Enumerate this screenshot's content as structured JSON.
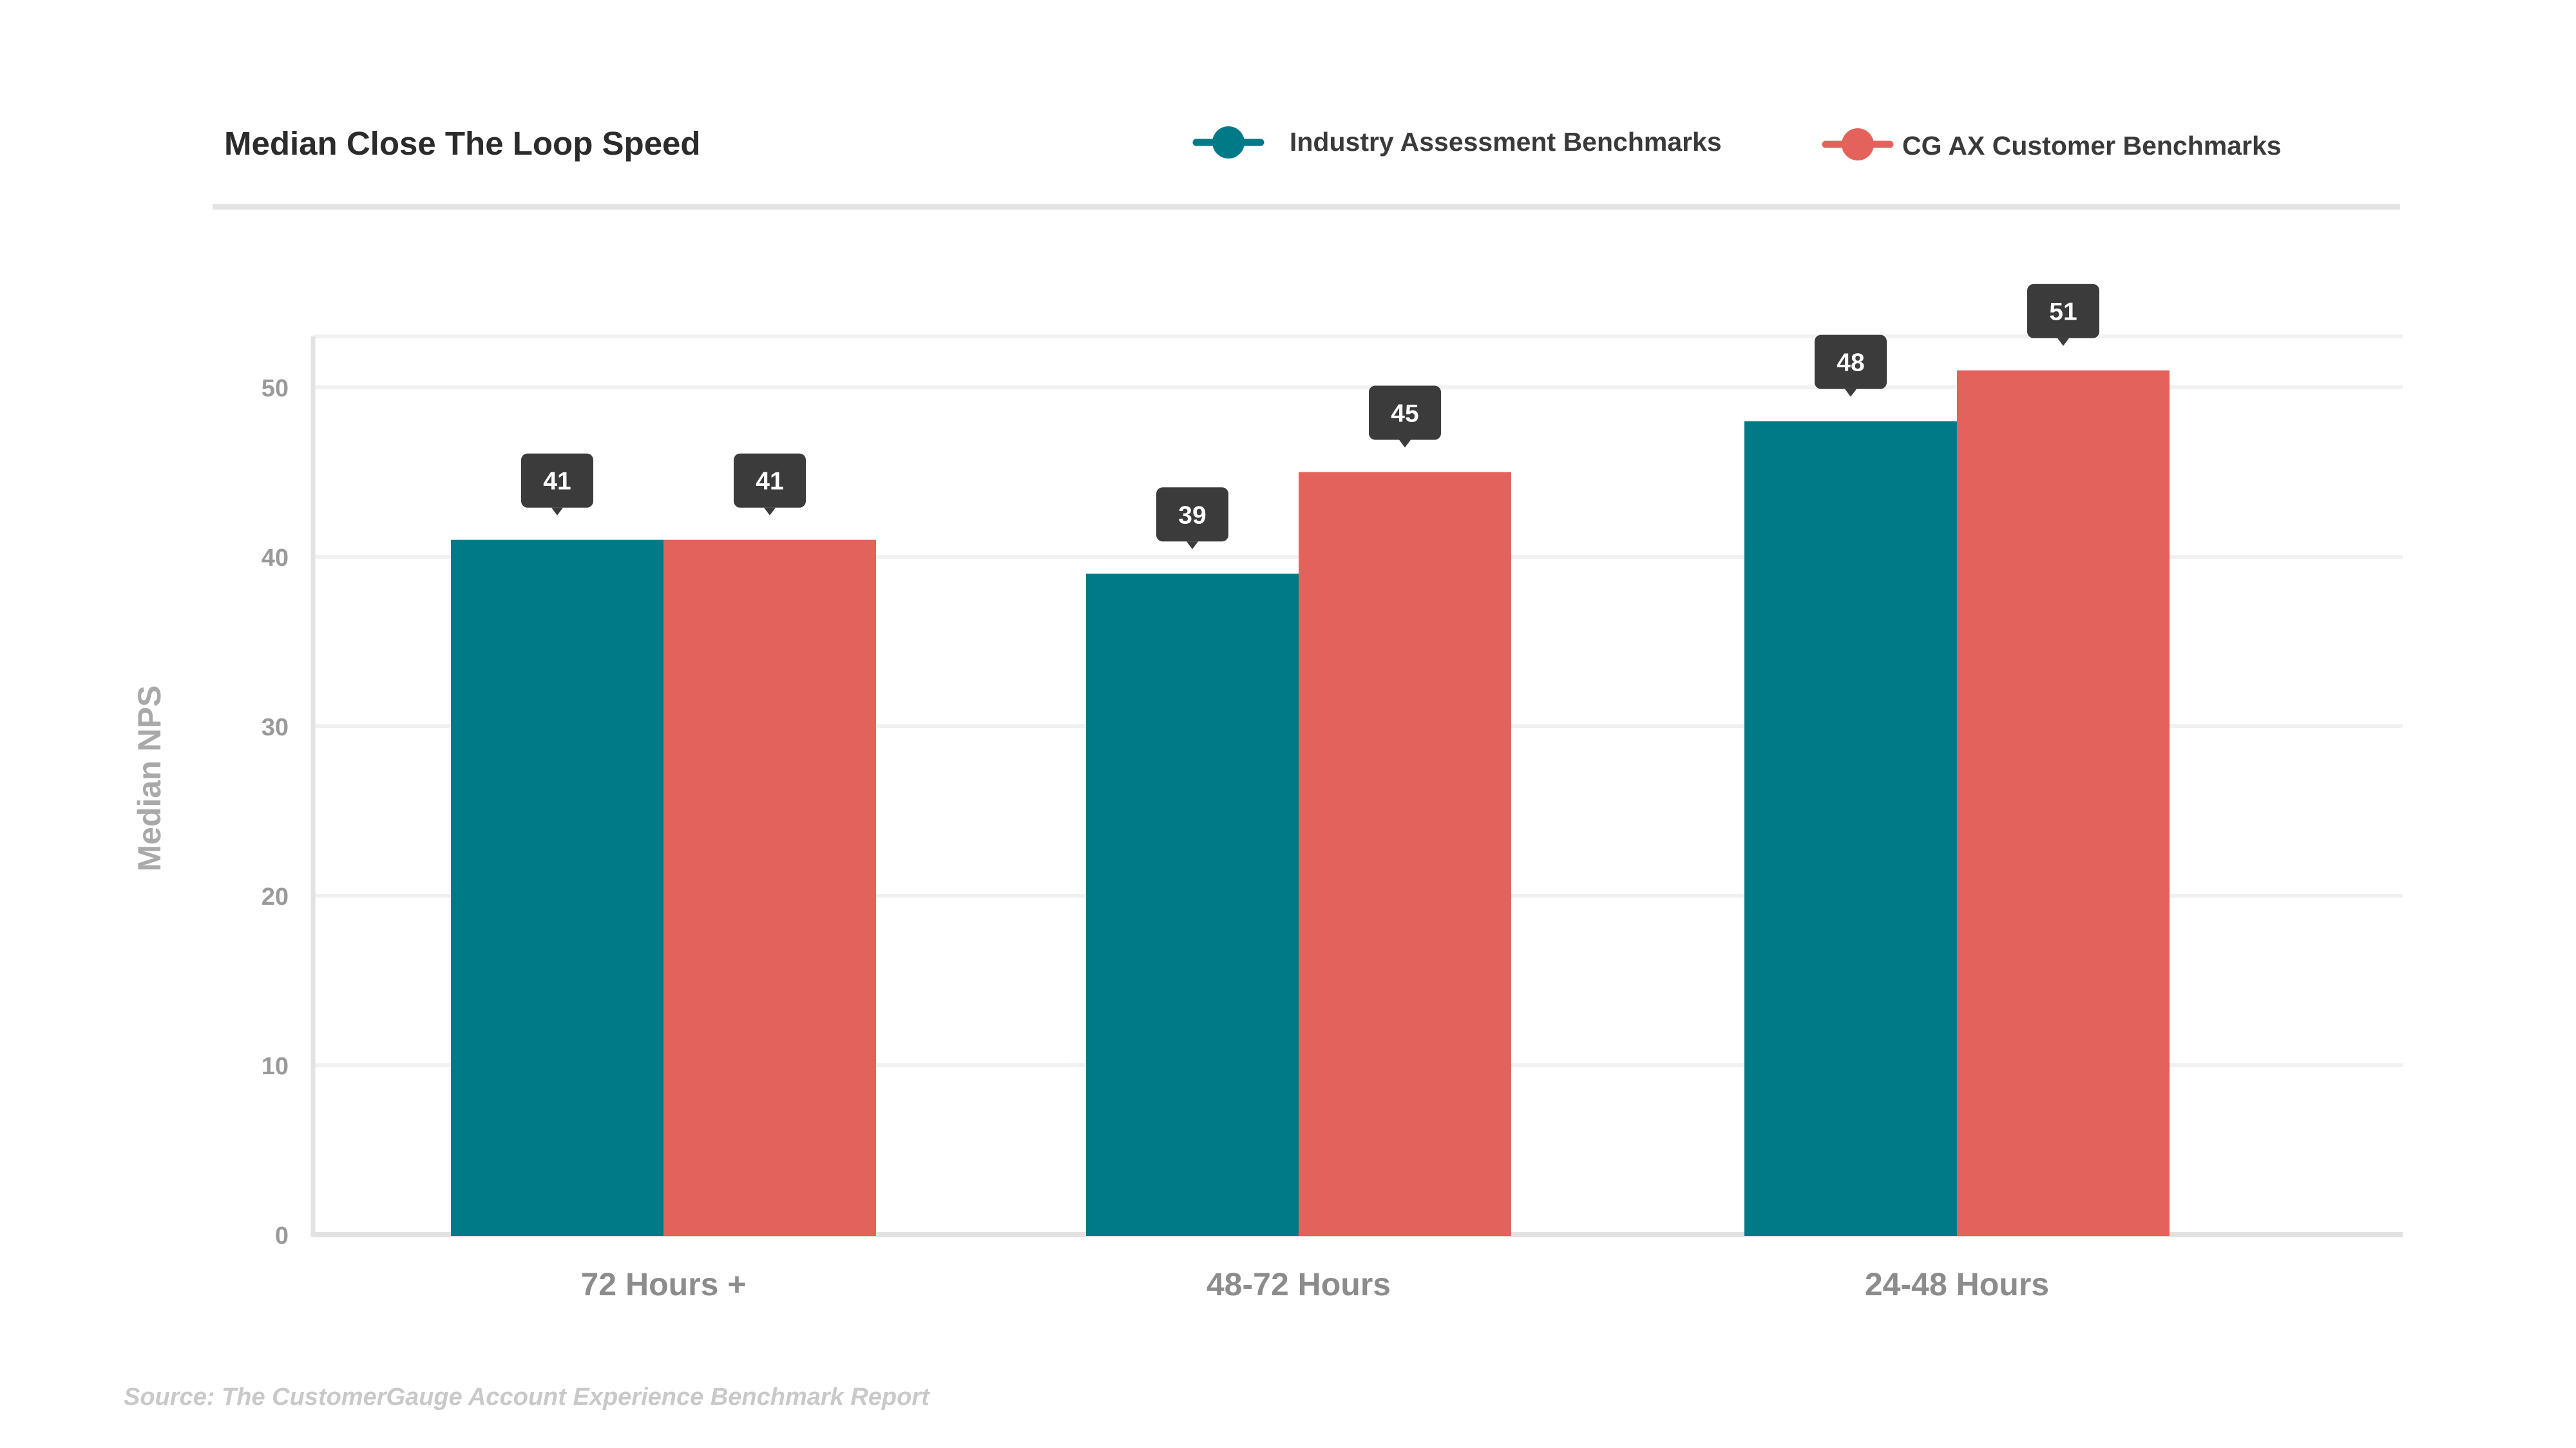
{
  "chart_data": {
    "type": "bar",
    "title": "Median Close The Loop Speed",
    "xlabel": "",
    "ylabel": "Median NPS",
    "categories": [
      "72 Hours +",
      "48-72 Hours",
      "24-48 Hours"
    ],
    "series": [
      {
        "name": "Industry Assessment Benchmarks",
        "color": "#007a87",
        "values": [
          41,
          39,
          48
        ]
      },
      {
        "name": "CG AX Customer Benchmarks",
        "color": "#e3635c",
        "values": [
          41,
          45,
          51
        ]
      }
    ],
    "yticks": [
      "0",
      "10",
      "20",
      "30",
      "40",
      "50"
    ],
    "ylim": [
      0,
      53.5
    ],
    "grid": true,
    "legend_position": "top-right",
    "data_labels": true,
    "data_label_bg": "#3b3b3b"
  },
  "source_note": "Source: The CustomerGauge Account Experience Benchmark Report"
}
